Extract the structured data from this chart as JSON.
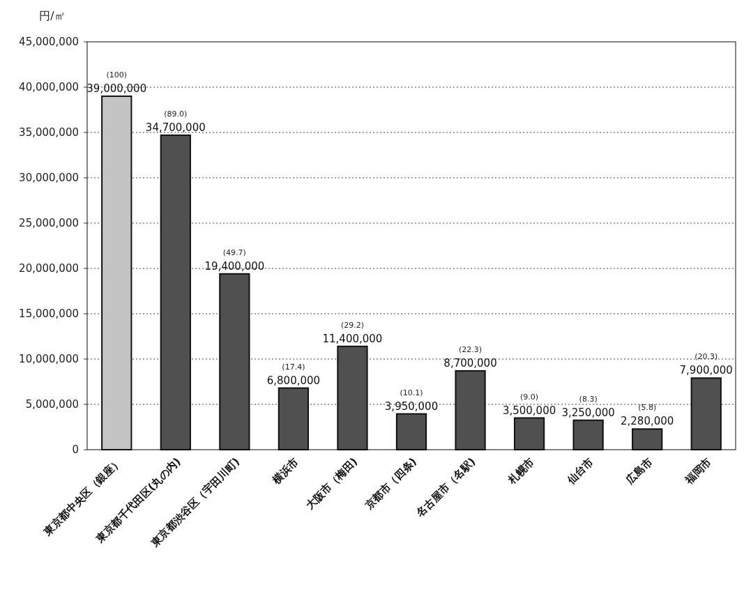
{
  "chart_data": {
    "type": "bar",
    "ylabel": "円/㎡",
    "categories": [
      "東京都中央区（銀座）",
      "東京都千代田区(丸の内)",
      "東京都渋谷区（宇田川町)",
      "横浜市",
      "大阪市（梅田)",
      "京都市（四条)",
      "名古屋市（名駅)",
      "札幌市",
      "仙台市",
      "広島市",
      "福岡市"
    ],
    "values": [
      39000000,
      34700000,
      19400000,
      6800000,
      11400000,
      3950000,
      8700000,
      3500000,
      3250000,
      2280000,
      7900000
    ],
    "colors": [
      "#c4c4c4",
      "#505050",
      "#505050",
      "#505050",
      "#505050",
      "#505050",
      "#505050",
      "#505050",
      "#505050",
      "#505050",
      "#505050"
    ],
    "value_labels": [
      "39,000,000",
      "34,700,000",
      "19,400,000",
      "6,800,000",
      "11,400,000",
      "3,950,000",
      "8,700,000",
      "3,500,000",
      "3,250,000",
      "2,280,000",
      "7,900,000"
    ],
    "annotations": [
      {
        "text": "(100)",
        "x": "東京都中央区（銀座）",
        "y": 39000000
      },
      {
        "text": "(89.0)",
        "x": "東京都千代田区(丸の内)",
        "y": 34700000
      },
      {
        "text": "(49.7)",
        "x": "東京都渋谷区（宇田川町)",
        "y": 19400000
      },
      {
        "text": "(17.4)",
        "x": "横浜市",
        "y": 6800000
      },
      {
        "text": "(29.2)",
        "x": "大阪市（梅田)",
        "y": 11400000
      },
      {
        "text": "(10.1)",
        "x": "京都市（四条)",
        "y": 3950000
      },
      {
        "text": "(22.3)",
        "x": "名古屋市（名駅)",
        "y": 8700000
      },
      {
        "text": "(9.0)",
        "x": "札幌市",
        "y": 3500000
      },
      {
        "text": "(8.3)",
        "x": "仙台市",
        "y": 3250000
      },
      {
        "text": "(5.8)",
        "x": "広島市",
        "y": 2280000
      },
      {
        "text": "(20.3)",
        "x": "福岡市",
        "y": 7900000
      }
    ],
    "ylim": [
      0,
      45000000
    ],
    "yticks": [
      0,
      {
        "value": 5000000,
        "label": "5,000,000"
      },
      {
        "value": 10000000,
        "label": "10,000,000"
      },
      {
        "value": 15000000,
        "label": "15,000,000"
      },
      {
        "value": 20000000,
        "label": "20,000,000"
      },
      {
        "value": 25000000,
        "label": "25,000,000"
      },
      {
        "value": 30000000,
        "label": "30,000,000"
      },
      {
        "value": 35000000,
        "label": "35,000,000"
      },
      {
        "value": 40000000,
        "label": "40,000,000"
      },
      {
        "value": 45000000,
        "label": "45,000,000"
      }
    ],
    "grid": "y"
  }
}
